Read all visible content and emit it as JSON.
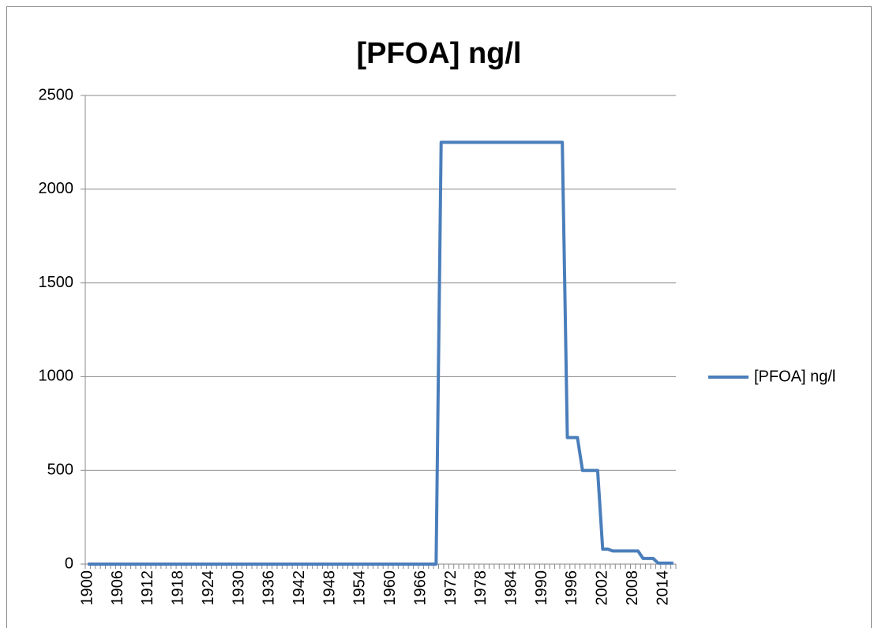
{
  "chart_data": {
    "type": "line",
    "title": "[PFOA] ng/l",
    "categories": [
      "1900",
      null,
      null,
      null,
      null,
      null,
      "1906",
      null,
      null,
      null,
      null,
      null,
      "1912",
      null,
      null,
      null,
      null,
      null,
      "1918",
      null,
      null,
      null,
      null,
      null,
      "1924",
      null,
      null,
      null,
      null,
      null,
      "1930",
      null,
      null,
      null,
      null,
      null,
      "1936",
      null,
      null,
      null,
      null,
      null,
      "1942",
      null,
      null,
      null,
      null,
      null,
      "1948",
      null,
      null,
      null,
      null,
      null,
      "1954",
      null,
      null,
      null,
      null,
      null,
      "1960",
      null,
      null,
      null,
      null,
      null,
      "1966",
      null,
      null,
      null,
      null,
      null,
      "1972",
      null,
      null,
      null,
      null,
      null,
      "1978",
      null,
      null,
      null,
      null,
      null,
      "1984",
      null,
      null,
      null,
      null,
      null,
      "1990",
      null,
      null,
      null,
      null,
      null,
      "1996",
      null,
      null,
      null,
      null,
      null,
      "2002",
      null,
      null,
      null,
      null,
      null,
      "2008",
      null,
      null,
      null,
      null,
      null,
      "2014",
      null,
      null
    ],
    "series": [
      {
        "name": "[PFOA] ng/l",
        "color": "#4a7ebb",
        "values": [
          0,
          0,
          0,
          0,
          0,
          0,
          0,
          0,
          0,
          0,
          0,
          0,
          0,
          0,
          0,
          0,
          0,
          0,
          0,
          0,
          0,
          0,
          0,
          0,
          0,
          0,
          0,
          0,
          0,
          0,
          0,
          0,
          0,
          0,
          0,
          0,
          0,
          0,
          0,
          0,
          0,
          0,
          0,
          0,
          0,
          0,
          0,
          0,
          0,
          0,
          0,
          0,
          0,
          0,
          0,
          0,
          0,
          0,
          0,
          0,
          0,
          0,
          0,
          0,
          0,
          0,
          0,
          0,
          0,
          0,
          2250,
          2250,
          2250,
          2250,
          2250,
          2250,
          2250,
          2250,
          2250,
          2250,
          2250,
          2250,
          2250,
          2250,
          2250,
          2250,
          2250,
          2250,
          2250,
          2250,
          2250,
          2250,
          2250,
          2250,
          2250,
          675,
          675,
          675,
          500,
          500,
          500,
          500,
          80,
          80,
          70,
          70,
          70,
          70,
          70,
          70,
          30,
          30,
          30,
          5,
          5,
          5,
          5
        ]
      }
    ],
    "ylim": [
      0,
      2500
    ],
    "yticks": [
      0,
      500,
      1000,
      1500,
      2000,
      2500
    ],
    "grid": true,
    "legend": "right"
  }
}
